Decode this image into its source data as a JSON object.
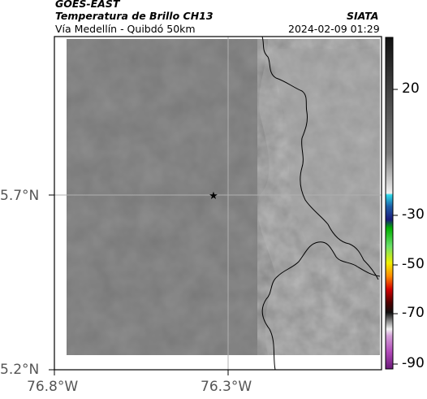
{
  "header": {
    "satellite": "GOES-EAST",
    "product": "Temperatura de Brillo CH13",
    "region": "Vía Medellín - Quibdó 50km",
    "agency": "SIATA",
    "timestamp": "2024-02-09 01:29"
  },
  "map": {
    "lat_labels": [
      "5.7°N",
      "5.2°N"
    ],
    "lon_labels": [
      "76.8°W",
      "76.3°W"
    ],
    "marker": "star-icon"
  },
  "colorbar": {
    "ticks": [
      "20",
      "-30",
      "-50",
      "-70",
      "-90"
    ]
  },
  "colors": {
    "cloud_gray": "#767676",
    "land_gray": "#9a9a9a",
    "border": "#000000"
  }
}
